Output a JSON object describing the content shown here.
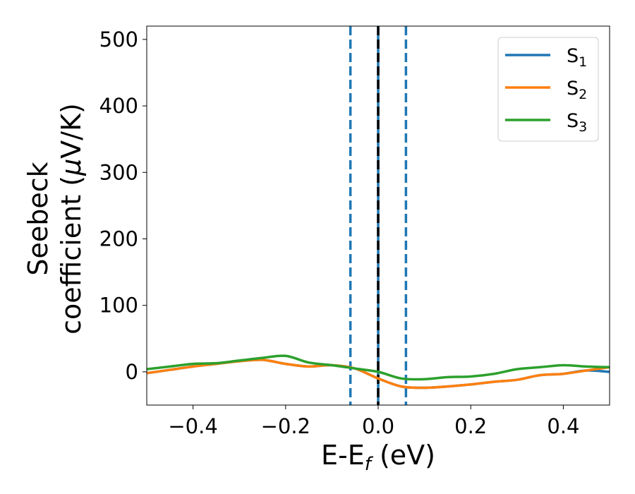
{
  "chart_data": {
    "type": "line",
    "xlabel": {
      "main": "E-E",
      "sub": "f",
      "unit": " (eV)"
    },
    "ylabel": {
      "line1": "Seebeck",
      "line2": "coefficient  (",
      "mu": "μ",
      "unit": "V/K)"
    },
    "xlim": [
      -0.5,
      0.5
    ],
    "ylim": [
      -50,
      520
    ],
    "xticks": [
      {
        "value": -0.4,
        "label": "−0.4"
      },
      {
        "value": -0.2,
        "label": "−0.2"
      },
      {
        "value": 0.0,
        "label": "0.0"
      },
      {
        "value": 0.2,
        "label": "0.2"
      },
      {
        "value": 0.4,
        "label": "0.4"
      }
    ],
    "yticks": [
      {
        "value": 0,
        "label": "0"
      },
      {
        "value": 100,
        "label": "100"
      },
      {
        "value": 200,
        "label": "200"
      },
      {
        "value": 300,
        "label": "300"
      },
      {
        "value": 400,
        "label": "400"
      },
      {
        "value": 500,
        "label": "500"
      }
    ],
    "legend_position": "top-right",
    "series": [
      {
        "name": "S1",
        "label_main": "S",
        "label_sub": "1",
        "color": "#1f77b4",
        "x": [
          -0.5,
          -0.45,
          -0.4,
          -0.35,
          -0.3,
          -0.25,
          -0.2,
          -0.15,
          -0.1,
          -0.05,
          0.0,
          0.05,
          0.1,
          0.15,
          0.2,
          0.25,
          0.3,
          0.35,
          0.4,
          0.45,
          0.5
        ],
        "y": [
          -2,
          3,
          8,
          12,
          16,
          18,
          12,
          8,
          10,
          5,
          -10,
          -22,
          -24,
          -22,
          -19,
          -15,
          -12,
          -5,
          -3,
          2,
          0
        ]
      },
      {
        "name": "S2",
        "label_main": "S",
        "label_sub": "2",
        "color": "#ff7f0e",
        "x": [
          -0.5,
          -0.45,
          -0.4,
          -0.35,
          -0.3,
          -0.25,
          -0.2,
          -0.15,
          -0.1,
          -0.05,
          0.0,
          0.05,
          0.1,
          0.15,
          0.2,
          0.25,
          0.3,
          0.35,
          0.4,
          0.45,
          0.5
        ],
        "y": [
          -2,
          3,
          8,
          12,
          16,
          18,
          12,
          8,
          10,
          5,
          -10,
          -22,
          -24,
          -22,
          -19,
          -15,
          -12,
          -5,
          -3,
          2,
          7
        ]
      },
      {
        "name": "S3",
        "label_main": "S",
        "label_sub": "3",
        "color": "#2ca02c",
        "x": [
          -0.5,
          -0.45,
          -0.4,
          -0.35,
          -0.3,
          -0.25,
          -0.2,
          -0.15,
          -0.1,
          -0.05,
          0.0,
          0.05,
          0.1,
          0.15,
          0.2,
          0.25,
          0.3,
          0.35,
          0.4,
          0.45,
          0.5
        ],
        "y": [
          4,
          8,
          12,
          13,
          17,
          21,
          24,
          14,
          10,
          5,
          0,
          -10,
          -11,
          -8,
          -7,
          -3,
          4,
          7,
          10,
          8,
          7
        ]
      }
    ],
    "vlines": [
      {
        "x": -0.06,
        "style": "dashed",
        "color": "#1f77b4"
      },
      {
        "x": 0.0,
        "style": "solid",
        "color": "#1f77b4"
      },
      {
        "x": 0.0,
        "style": "dashed",
        "color": "#000000"
      },
      {
        "x": 0.06,
        "style": "dashed",
        "color": "#1f77b4"
      }
    ]
  }
}
